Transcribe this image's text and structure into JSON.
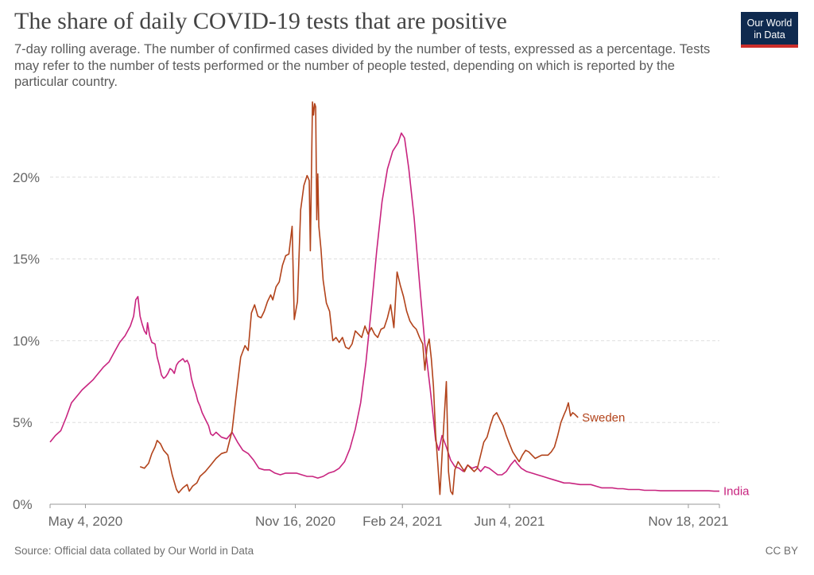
{
  "header": {
    "title": "The share of daily COVID-19 tests that are positive",
    "subtitle": "7-day rolling average. The number of confirmed cases divided by the number of tests, expressed as a percentage. Tests may refer to the number of tests performed or the number of people tested, depending on which is reported by the particular country."
  },
  "logo": {
    "line1": "Our World",
    "line2": "in Data",
    "bg_color": "#0f2a4f",
    "accent_color": "#cc2e2b"
  },
  "footer": {
    "source": "Source: Official data collated by Our World in Data",
    "license": "CC BY"
  },
  "chart_data": {
    "type": "line",
    "title": "The share of daily COVID-19 tests that are positive",
    "xlabel": "",
    "ylabel": "",
    "x_unit": "days since 2020-04-01",
    "xlim": [
      0,
      625
    ],
    "ylim": [
      0,
      25
    ],
    "grid": true,
    "y_ticks": [
      {
        "value": 0,
        "label": "0%"
      },
      {
        "value": 5,
        "label": "5%"
      },
      {
        "value": 10,
        "label": "10%"
      },
      {
        "value": 15,
        "label": "15%"
      },
      {
        "value": 20,
        "label": "20%"
      }
    ],
    "x_ticks": [
      {
        "value": 33,
        "label": "May 4, 2020"
      },
      {
        "value": 229,
        "label": "Nov 16, 2020"
      },
      {
        "value": 329,
        "label": "Feb 24, 2021"
      },
      {
        "value": 429,
        "label": "Jun 4, 2021"
      },
      {
        "value": 596,
        "label": "Nov 18, 2021"
      }
    ],
    "series": [
      {
        "name": "India",
        "color": "#c8247f",
        "points": [
          [
            0,
            3.8
          ],
          [
            5,
            4.2
          ],
          [
            10,
            4.5
          ],
          [
            15,
            5.3
          ],
          [
            20,
            6.2
          ],
          [
            25,
            6.6
          ],
          [
            30,
            7.0
          ],
          [
            35,
            7.3
          ],
          [
            40,
            7.6
          ],
          [
            45,
            8.0
          ],
          [
            50,
            8.4
          ],
          [
            55,
            8.7
          ],
          [
            60,
            9.3
          ],
          [
            65,
            9.9
          ],
          [
            70,
            10.3
          ],
          [
            75,
            10.9
          ],
          [
            78,
            11.5
          ],
          [
            80,
            12.5
          ],
          [
            82,
            12.7
          ],
          [
            84,
            11.5
          ],
          [
            86,
            11.0
          ],
          [
            88,
            10.6
          ],
          [
            90,
            10.4
          ],
          [
            91,
            11.1
          ],
          [
            93,
            10.3
          ],
          [
            95,
            9.9
          ],
          [
            98,
            9.8
          ],
          [
            100,
            9.0
          ],
          [
            102,
            8.5
          ],
          [
            104,
            7.9
          ],
          [
            106,
            7.7
          ],
          [
            108,
            7.8
          ],
          [
            110,
            8.0
          ],
          [
            112,
            8.3
          ],
          [
            114,
            8.2
          ],
          [
            116,
            8.0
          ],
          [
            118,
            8.5
          ],
          [
            120,
            8.7
          ],
          [
            122,
            8.8
          ],
          [
            124,
            8.9
          ],
          [
            126,
            8.7
          ],
          [
            128,
            8.8
          ],
          [
            130,
            8.5
          ],
          [
            132,
            7.7
          ],
          [
            134,
            7.2
          ],
          [
            136,
            6.8
          ],
          [
            138,
            6.3
          ],
          [
            140,
            6.0
          ],
          [
            142,
            5.6
          ],
          [
            145,
            5.2
          ],
          [
            148,
            4.8
          ],
          [
            150,
            4.3
          ],
          [
            152,
            4.2
          ],
          [
            155,
            4.4
          ],
          [
            160,
            4.1
          ],
          [
            165,
            4.0
          ],
          [
            170,
            4.4
          ],
          [
            175,
            3.8
          ],
          [
            180,
            3.3
          ],
          [
            185,
            3.1
          ],
          [
            190,
            2.7
          ],
          [
            195,
            2.2
          ],
          [
            200,
            2.1
          ],
          [
            205,
            2.1
          ],
          [
            210,
            1.9
          ],
          [
            215,
            1.8
          ],
          [
            220,
            1.9
          ],
          [
            225,
            1.9
          ],
          [
            230,
            1.9
          ],
          [
            235,
            1.8
          ],
          [
            240,
            1.7
          ],
          [
            245,
            1.7
          ],
          [
            250,
            1.6
          ],
          [
            255,
            1.7
          ],
          [
            260,
            1.9
          ],
          [
            265,
            2.0
          ],
          [
            270,
            2.2
          ],
          [
            275,
            2.6
          ],
          [
            280,
            3.4
          ],
          [
            285,
            4.6
          ],
          [
            290,
            6.2
          ],
          [
            295,
            8.7
          ],
          [
            300,
            12.0
          ],
          [
            305,
            15.5
          ],
          [
            310,
            18.5
          ],
          [
            315,
            20.5
          ],
          [
            320,
            21.6
          ],
          [
            325,
            22.1
          ],
          [
            328,
            22.7
          ],
          [
            331,
            22.4
          ],
          [
            335,
            20.5
          ],
          [
            340,
            17.5
          ],
          [
            345,
            13.5
          ],
          [
            350,
            9.8
          ],
          [
            355,
            7.0
          ],
          [
            358,
            5.2
          ],
          [
            360,
            3.9
          ],
          [
            363,
            3.3
          ],
          [
            366,
            4.2
          ],
          [
            370,
            3.5
          ],
          [
            374,
            2.7
          ],
          [
            378,
            2.3
          ],
          [
            382,
            2.2
          ],
          [
            386,
            2.0
          ],
          [
            390,
            2.4
          ],
          [
            394,
            2.2
          ],
          [
            398,
            2.3
          ],
          [
            402,
            2.0
          ],
          [
            406,
            2.3
          ],
          [
            410,
            2.2
          ],
          [
            414,
            2.0
          ],
          [
            418,
            1.8
          ],
          [
            422,
            1.8
          ],
          [
            426,
            2.0
          ],
          [
            430,
            2.4
          ],
          [
            434,
            2.7
          ],
          [
            436,
            2.5
          ],
          [
            440,
            2.2
          ],
          [
            445,
            2.0
          ],
          [
            450,
            1.9
          ],
          [
            455,
            1.8
          ],
          [
            460,
            1.7
          ],
          [
            465,
            1.6
          ],
          [
            470,
            1.5
          ],
          [
            475,
            1.4
          ],
          [
            480,
            1.3
          ],
          [
            485,
            1.3
          ],
          [
            490,
            1.25
          ],
          [
            495,
            1.2
          ],
          [
            500,
            1.2
          ],
          [
            505,
            1.2
          ],
          [
            510,
            1.1
          ],
          [
            515,
            1.0
          ],
          [
            520,
            1.0
          ],
          [
            525,
            1.0
          ],
          [
            530,
            0.95
          ],
          [
            535,
            0.95
          ],
          [
            540,
            0.9
          ],
          [
            545,
            0.9
          ],
          [
            550,
            0.9
          ],
          [
            555,
            0.85
          ],
          [
            560,
            0.85
          ],
          [
            565,
            0.85
          ],
          [
            570,
            0.82
          ],
          [
            575,
            0.82
          ],
          [
            580,
            0.82
          ],
          [
            585,
            0.82
          ],
          [
            590,
            0.82
          ],
          [
            595,
            0.82
          ],
          [
            600,
            0.82
          ],
          [
            605,
            0.82
          ],
          [
            610,
            0.82
          ],
          [
            615,
            0.82
          ],
          [
            620,
            0.8
          ],
          [
            625,
            0.8
          ]
        ]
      },
      {
        "name": "Sweden",
        "color": "#b2431b",
        "points": [
          [
            84,
            2.3
          ],
          [
            88,
            2.2
          ],
          [
            92,
            2.5
          ],
          [
            95,
            3.1
          ],
          [
            98,
            3.5
          ],
          [
            100,
            3.9
          ],
          [
            103,
            3.7
          ],
          [
            106,
            3.3
          ],
          [
            110,
            3.0
          ],
          [
            114,
            1.8
          ],
          [
            118,
            0.9
          ],
          [
            120,
            0.7
          ],
          [
            124,
            1.0
          ],
          [
            128,
            1.2
          ],
          [
            130,
            0.8
          ],
          [
            133,
            1.1
          ],
          [
            137,
            1.3
          ],
          [
            140,
            1.7
          ],
          [
            145,
            2.0
          ],
          [
            150,
            2.4
          ],
          [
            155,
            2.8
          ],
          [
            160,
            3.1
          ],
          [
            165,
            3.2
          ],
          [
            170,
            4.5
          ],
          [
            174,
            6.8
          ],
          [
            178,
            9.0
          ],
          [
            182,
            9.7
          ],
          [
            185,
            9.4
          ],
          [
            188,
            11.7
          ],
          [
            191,
            12.2
          ],
          [
            194,
            11.5
          ],
          [
            197,
            11.4
          ],
          [
            200,
            11.8
          ],
          [
            203,
            12.4
          ],
          [
            206,
            12.8
          ],
          [
            208,
            12.5
          ],
          [
            211,
            13.3
          ],
          [
            214,
            13.6
          ],
          [
            217,
            14.6
          ],
          [
            220,
            15.2
          ],
          [
            223,
            15.3
          ],
          [
            226,
            17.0
          ],
          [
            228,
            11.3
          ],
          [
            231,
            12.4
          ],
          [
            234,
            18.0
          ],
          [
            237,
            19.5
          ],
          [
            240,
            20.1
          ],
          [
            242,
            19.8
          ],
          [
            243,
            15.5
          ],
          [
            245,
            24.6
          ],
          [
            246,
            23.8
          ],
          [
            247,
            24.5
          ],
          [
            248,
            24.3
          ],
          [
            249,
            17.4
          ],
          [
            250,
            20.2
          ],
          [
            251,
            17.0
          ],
          [
            253,
            15.6
          ],
          [
            255,
            13.7
          ],
          [
            258,
            12.3
          ],
          [
            261,
            11.8
          ],
          [
            264,
            10.0
          ],
          [
            267,
            10.2
          ],
          [
            270,
            9.9
          ],
          [
            273,
            10.2
          ],
          [
            276,
            9.6
          ],
          [
            279,
            9.5
          ],
          [
            282,
            9.8
          ],
          [
            285,
            10.6
          ],
          [
            288,
            10.4
          ],
          [
            291,
            10.2
          ],
          [
            294,
            10.9
          ],
          [
            297,
            10.4
          ],
          [
            300,
            10.8
          ],
          [
            303,
            10.4
          ],
          [
            306,
            10.2
          ],
          [
            309,
            10.7
          ],
          [
            312,
            10.8
          ],
          [
            315,
            11.4
          ],
          [
            318,
            12.2
          ],
          [
            321,
            10.8
          ],
          [
            324,
            14.2
          ],
          [
            327,
            13.4
          ],
          [
            330,
            12.7
          ],
          [
            333,
            11.8
          ],
          [
            336,
            11.2
          ],
          [
            339,
            10.9
          ],
          [
            342,
            10.7
          ],
          [
            345,
            10.2
          ],
          [
            348,
            9.8
          ],
          [
            350,
            8.2
          ],
          [
            352,
            9.6
          ],
          [
            354,
            10.1
          ],
          [
            356,
            8.9
          ],
          [
            358,
            7.2
          ],
          [
            360,
            4.3
          ],
          [
            362,
            2.5
          ],
          [
            364,
            0.6
          ],
          [
            366,
            3.0
          ],
          [
            368,
            5.3
          ],
          [
            370,
            7.5
          ],
          [
            372,
            2.0
          ],
          [
            374,
            0.8
          ],
          [
            376,
            0.6
          ],
          [
            378,
            2.1
          ],
          [
            381,
            2.6
          ],
          [
            384,
            2.3
          ],
          [
            387,
            2.0
          ],
          [
            390,
            2.4
          ],
          [
            393,
            2.2
          ],
          [
            396,
            2.0
          ],
          [
            399,
            2.2
          ],
          [
            402,
            3.0
          ],
          [
            405,
            3.8
          ],
          [
            408,
            4.1
          ],
          [
            411,
            4.8
          ],
          [
            414,
            5.4
          ],
          [
            417,
            5.6
          ],
          [
            420,
            5.2
          ],
          [
            423,
            4.8
          ],
          [
            426,
            4.2
          ],
          [
            429,
            3.7
          ],
          [
            432,
            3.2
          ],
          [
            435,
            2.9
          ],
          [
            438,
            2.6
          ],
          [
            441,
            3.0
          ],
          [
            444,
            3.3
          ],
          [
            447,
            3.2
          ],
          [
            450,
            3.0
          ],
          [
            453,
            2.8
          ],
          [
            456,
            2.9
          ],
          [
            459,
            3.0
          ],
          [
            462,
            3.0
          ],
          [
            465,
            3.0
          ],
          [
            468,
            3.2
          ],
          [
            471,
            3.5
          ],
          [
            474,
            4.2
          ],
          [
            477,
            5.0
          ],
          [
            480,
            5.5
          ],
          [
            482,
            5.8
          ],
          [
            484,
            6.2
          ],
          [
            486,
            5.4
          ],
          [
            488,
            5.6
          ],
          [
            490,
            5.5
          ],
          [
            493,
            5.3
          ]
        ]
      }
    ]
  }
}
